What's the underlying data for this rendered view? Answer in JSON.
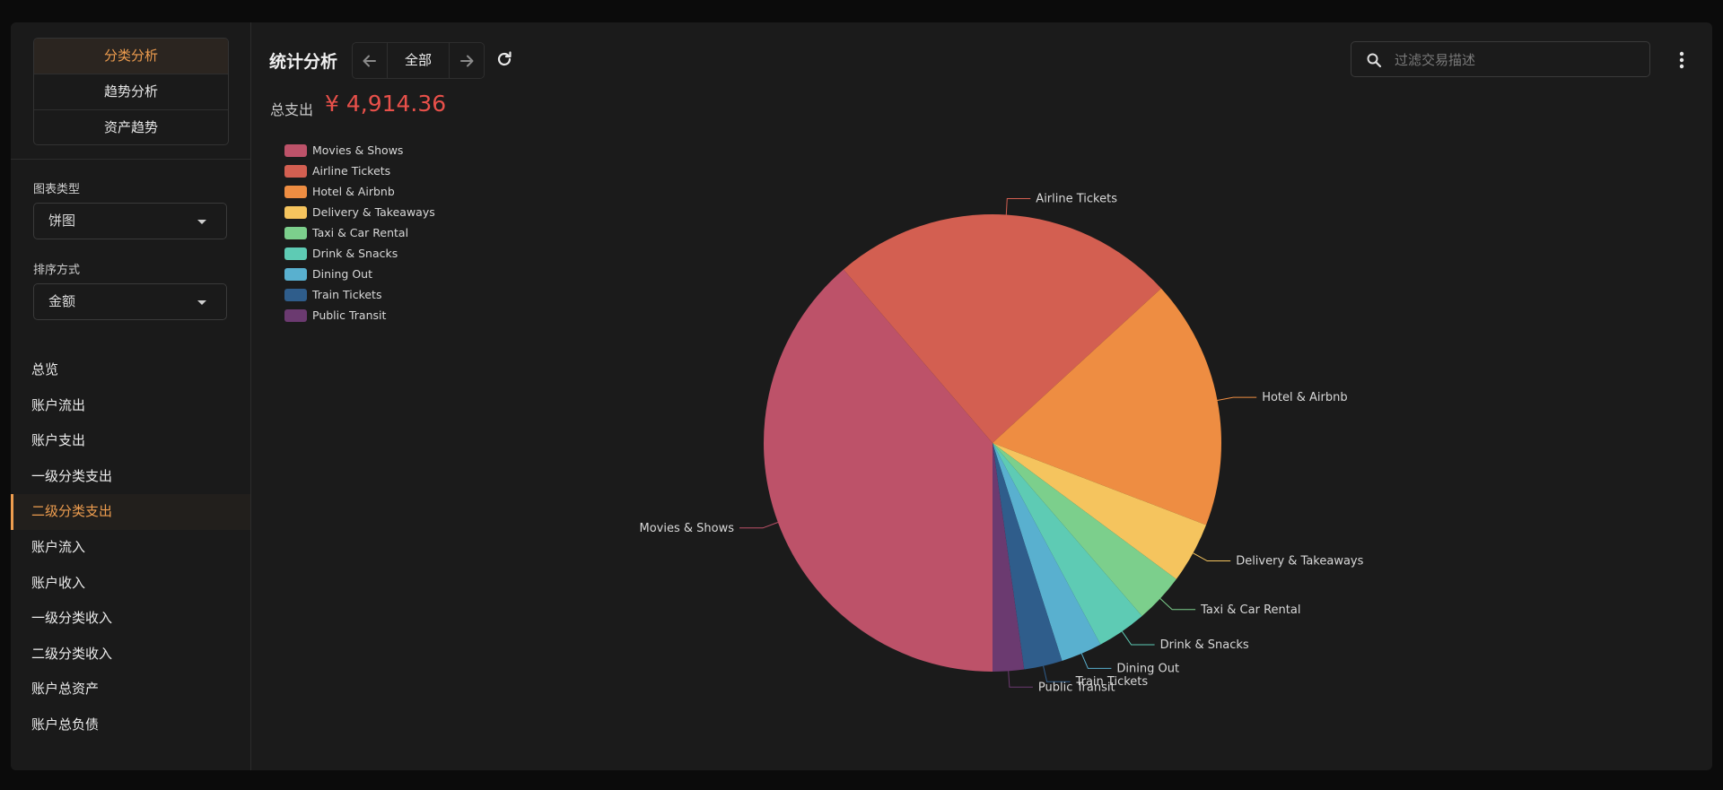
{
  "sidebar": {
    "segments": [
      "分类分析",
      "趋势分析",
      "资产趋势"
    ],
    "chart_type": {
      "label": "图表类型",
      "value": "饼图"
    },
    "sort_by": {
      "label": "排序方式",
      "value": "金额"
    },
    "nav": [
      "总览",
      "账户流出",
      "账户支出",
      "一级分类支出",
      "二级分类支出",
      "账户流入",
      "账户收入",
      "一级分类收入",
      "二级分类收入",
      "账户总资产",
      "账户总负债"
    ],
    "active_nav": "二级分类支出"
  },
  "header": {
    "title": "统计分析",
    "range": "全部",
    "search_placeholder": "过滤交易描述"
  },
  "summary": {
    "label": "总支出",
    "value": "¥ 4,914.36"
  },
  "icons": {
    "prev": "arrow-left-icon",
    "next": "arrow-right-icon",
    "refresh": "refresh-icon",
    "search": "search-icon",
    "more": "more-vertical-icon"
  },
  "chart_data": {
    "type": "pie",
    "categories": [
      "Movies & Shows",
      "Airline Tickets",
      "Hotel & Airbnb",
      "Delivery & Takeaways",
      "Taxi & Car Rental",
      "Drink & Snacks",
      "Dining Out",
      "Train Tickets",
      "Public Transit"
    ],
    "values": [
      38.6,
      24.4,
      17.6,
      4.3,
      3.5,
      3.5,
      2.9,
      2.7,
      2.2
    ],
    "colors": [
      "#bd5269",
      "#d35f51",
      "#ee8d42",
      "#f5c45e",
      "#7ccf8c",
      "#5ecbb4",
      "#59b0cf",
      "#2f5d8b",
      "#6b3a70"
    ],
    "legend_position": "top-left",
    "labels_outside": true
  }
}
